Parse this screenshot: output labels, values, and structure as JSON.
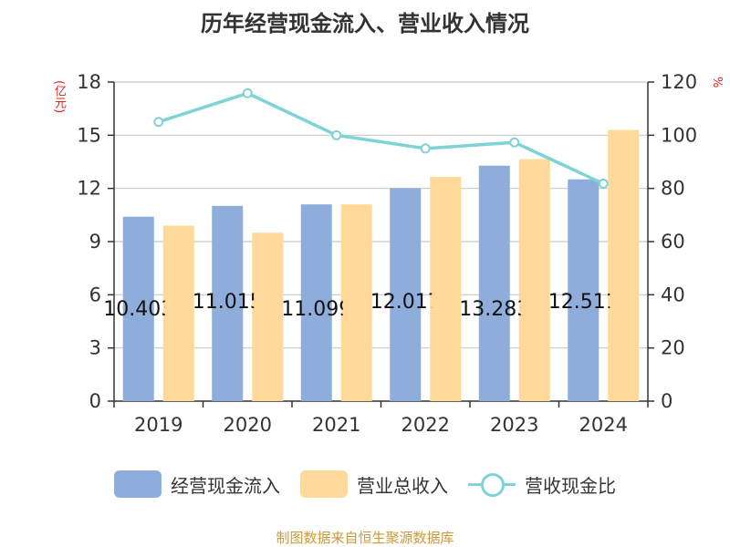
{
  "title": "历年经营现金流入、营业收入情况",
  "left_axis_unit": "(亿元)",
  "right_axis_unit": "%",
  "source": "制图数据来自恒生聚源数据库",
  "colors": {
    "cash_inflow": "#8eaddb",
    "revenue": "#ffd99a",
    "ratio": "#7ed3d6",
    "axis": "#333333",
    "grid": "#c8c8c8"
  },
  "chart_data": {
    "type": "bar",
    "categories": [
      "2019",
      "2020",
      "2021",
      "2022",
      "2023",
      "2024"
    ],
    "series": [
      {
        "name": "经营现金流入",
        "type": "bar",
        "axis": "left",
        "values": [
          10.403,
          11.015,
          11.099,
          12.017,
          13.283,
          12.511
        ]
      },
      {
        "name": "营业总收入",
        "type": "bar",
        "axis": "left",
        "values": [
          9.9,
          9.5,
          11.1,
          12.65,
          13.65,
          15.3
        ]
      },
      {
        "name": "营收现金比",
        "type": "line",
        "axis": "right",
        "values": [
          105,
          115.8,
          100,
          95,
          97.3,
          81.8
        ]
      }
    ],
    "data_labels": [
      "10.403",
      "11.015",
      "11.099",
      "12.017",
      "13.283",
      "12.511"
    ],
    "y_left": {
      "min": 0,
      "max": 18,
      "ticks": [
        "0",
        "3",
        "6",
        "9",
        "12",
        "15",
        "18"
      ]
    },
    "y_right": {
      "min": 0,
      "max": 120,
      "ticks": [
        "0",
        "20",
        "40",
        "60",
        "80",
        "100",
        "120"
      ]
    },
    "grid": true,
    "legend_position": "bottom"
  }
}
